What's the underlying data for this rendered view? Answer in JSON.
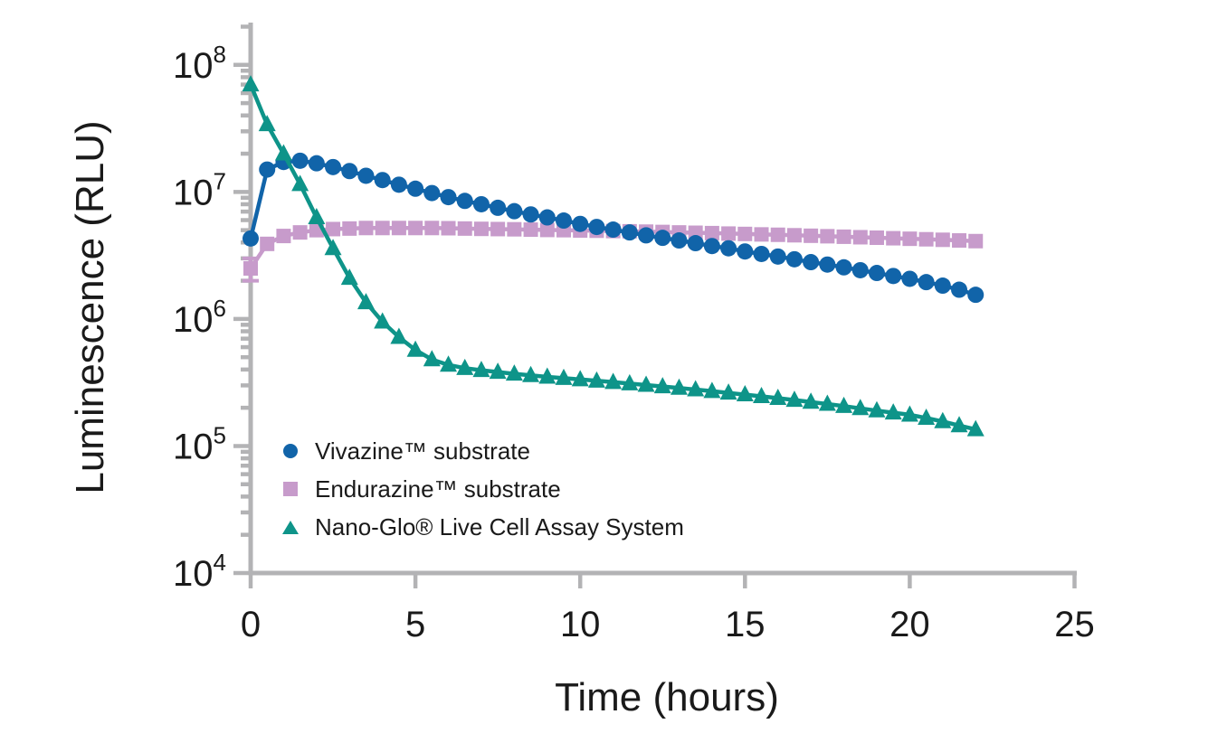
{
  "figure": {
    "background": "#ffffff",
    "axis_color": "#b3b3b5",
    "text_color": "#1a1a1a"
  },
  "chart_data": {
    "type": "line",
    "title": "",
    "x_label": "Time (hours)",
    "y_label": "Luminescence (RLU)",
    "x_ticks": [
      0,
      5,
      10,
      15,
      20,
      25
    ],
    "y_tick_exponents": [
      4,
      5,
      6,
      7,
      8
    ],
    "y_scale": "log10",
    "x_range_hours": [
      0,
      25
    ],
    "y_range_rlu": [
      10000,
      230000000
    ],
    "grid": false,
    "legend_position": "inside-bottom-left",
    "x_hours": [
      0,
      0.5,
      1,
      1.5,
      2,
      2.5,
      3,
      3.5,
      4,
      4.5,
      5,
      5.5,
      6,
      6.5,
      7,
      7.5,
      8,
      8.5,
      9,
      9.5,
      10,
      10.5,
      11,
      11.5,
      12,
      12.5,
      13,
      13.5,
      14,
      14.5,
      15,
      15.5,
      16,
      16.5,
      17,
      17.5,
      18,
      18.5,
      19,
      19.5,
      20,
      20.5,
      21,
      21.5,
      22
    ],
    "series": [
      {
        "name": "Endurazine™ substrate",
        "marker": "square",
        "color": "#c79bcb",
        "error_bar_first_point": {
          "low": 2000000,
          "high": 3000000
        },
        "values": [
          2500000,
          3900000,
          4500000,
          4800000,
          5000000,
          5100000,
          5150000,
          5200000,
          5200000,
          5200000,
          5200000,
          5200000,
          5180000,
          5150000,
          5120000,
          5100000,
          5080000,
          5050000,
          5020000,
          5000000,
          4970000,
          4950000,
          4920000,
          4900000,
          4870000,
          4840000,
          4800000,
          4770000,
          4740000,
          4700000,
          4670000,
          4630000,
          4600000,
          4560000,
          4520000,
          4480000,
          4440000,
          4400000,
          4360000,
          4320000,
          4280000,
          4240000,
          4200000,
          4150000,
          4100000
        ]
      },
      {
        "name": "Vivazine™ substrate",
        "marker": "circle",
        "color": "#1164a9",
        "values": [
          4300000,
          15000000,
          17200000,
          17600000,
          16800000,
          15700000,
          14600000,
          13400000,
          12400000,
          11400000,
          10600000,
          9800000,
          9100000,
          8500000,
          8000000,
          7500000,
          7050000,
          6650000,
          6300000,
          5950000,
          5600000,
          5300000,
          5050000,
          4800000,
          4550000,
          4350000,
          4150000,
          3950000,
          3750000,
          3600000,
          3400000,
          3250000,
          3100000,
          2950000,
          2800000,
          2680000,
          2550000,
          2420000,
          2300000,
          2180000,
          2070000,
          1950000,
          1830000,
          1700000,
          1550000
        ]
      },
      {
        "name": "Nano-Glo® Live Cell Assay System",
        "marker": "triangle",
        "color": "#0e9489",
        "values": [
          70000000,
          34000000,
          20000000,
          11500000,
          6300000,
          3600000,
          2100000,
          1350000,
          950000,
          720000,
          570000,
          480000,
          435000,
          410000,
          395000,
          382000,
          370000,
          360000,
          350000,
          342000,
          334000,
          326000,
          318000,
          310000,
          302000,
          294000,
          286000,
          278000,
          270000,
          262000,
          254000,
          246000,
          238000,
          230000,
          222000,
          214000,
          206000,
          198000,
          190000,
          183000,
          176000,
          166000,
          156000,
          145000,
          135000
        ]
      }
    ],
    "legend_order": [
      1,
      0,
      2
    ]
  }
}
